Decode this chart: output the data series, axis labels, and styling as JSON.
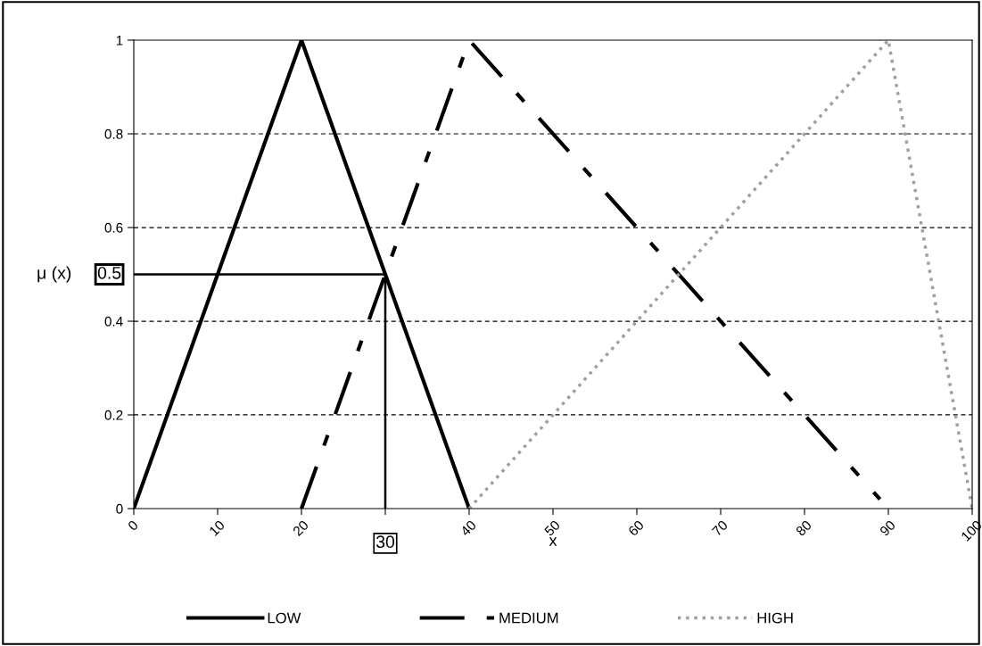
{
  "chart_data": {
    "type": "line",
    "xlabel": "x",
    "ylabel": "μ (x)",
    "series": [
      {
        "name": "LOW",
        "color": "#000000",
        "line_style": "solid",
        "x": [
          0,
          20,
          40
        ],
        "values": [
          0,
          1,
          0
        ]
      },
      {
        "name": "MEDIUM",
        "color": "#000000",
        "line_style": "dashed",
        "x": [
          20,
          40,
          89
        ],
        "values": [
          0,
          1,
          0.02
        ]
      },
      {
        "name": "HIGH",
        "color": "#a0a0a0",
        "line_style": "dotted",
        "x": [
          40,
          90,
          100
        ],
        "values": [
          0,
          1,
          0
        ]
      },
      {
        "color": "#000000",
        "line_style": "solid",
        "x": [
          0,
          30,
          30
        ],
        "values": [
          0.5,
          0.5,
          0
        ]
      }
    ],
    "xlim": [
      0,
      100
    ],
    "ylim": [
      0,
      1
    ],
    "xticks": [
      0,
      10,
      20,
      {
        "value": 30,
        "label": null
      },
      40,
      50,
      60,
      70,
      80,
      90,
      100
    ],
    "yticks": [
      0,
      0.2,
      0.4,
      0.6,
      0.8,
      1
    ],
    "annotations": [
      {
        "text": "0.5",
        "x": 0,
        "y": 0.5
      },
      {
        "text": "30",
        "x": 30,
        "y": 0
      }
    ],
    "grid": "y",
    "legend": "bottom",
    "marker": "none"
  }
}
